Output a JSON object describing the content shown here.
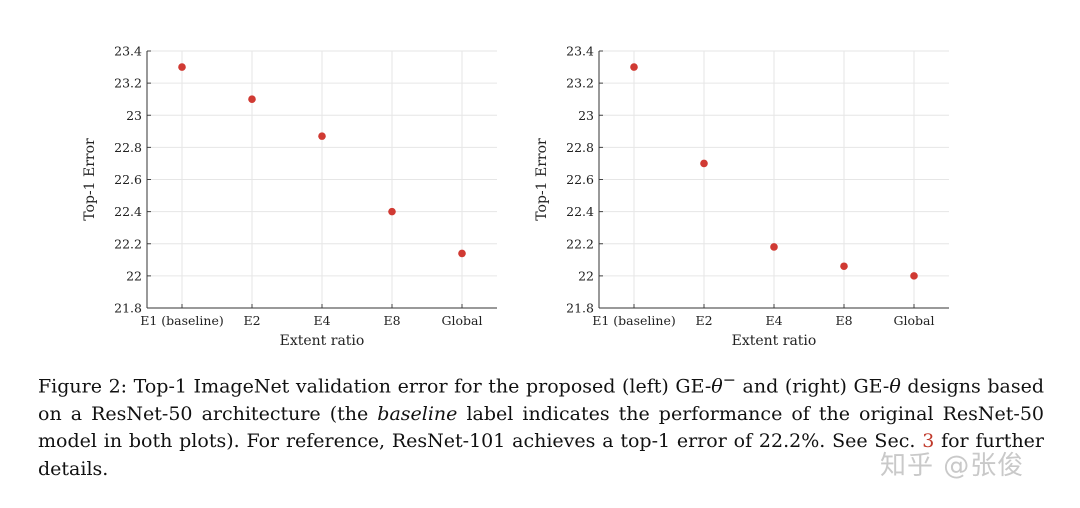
{
  "chart_data": [
    {
      "type": "scatter",
      "categories": [
        "E1 (baseline)",
        "E2",
        "E4",
        "E8",
        "Global"
      ],
      "values": [
        23.3,
        23.1,
        22.87,
        22.4,
        22.14
      ],
      "xlabel": "Extent ratio",
      "ylabel": "Top-1 Error",
      "ylim": [
        21.8,
        23.4
      ],
      "yticks": [
        "21.8",
        "22",
        "22.2",
        "22.4",
        "22.6",
        "22.8",
        "23",
        "23.2",
        "23.4"
      ],
      "grid": true,
      "marker_color": "#d03a33"
    },
    {
      "type": "scatter",
      "categories": [
        "E1 (baseline)",
        "E2",
        "E4",
        "E8",
        "Global"
      ],
      "values": [
        23.3,
        22.7,
        22.18,
        22.06,
        22.0
      ],
      "xlabel": "Extent ratio",
      "ylabel": "Top-1 Error",
      "ylim": [
        21.8,
        23.4
      ],
      "yticks": [
        "21.8",
        "22",
        "22.2",
        "22.4",
        "22.6",
        "22.8",
        "23",
        "23.2",
        "23.4"
      ],
      "grid": true,
      "marker_color": "#d03a33"
    }
  ],
  "caption": {
    "p1": "Figure 2: Top-1 ImageNet validation error for the proposed (left) GE-",
    "theta_minus": "θ",
    "sup_minus": "−",
    "p2": " and (right) GE-",
    "theta": "θ",
    "p3": " designs based on a ResNet-50 architecture (the ",
    "baseline": "baseline",
    "p4": " label indicates the performance of the original ResNet-50 model in both plots). For reference, ResNet-101 achieves a top-1 error of 22.2%. See Sec. ",
    "ref": "3",
    "p5": " for further details."
  },
  "watermark": "知乎 @张俊"
}
